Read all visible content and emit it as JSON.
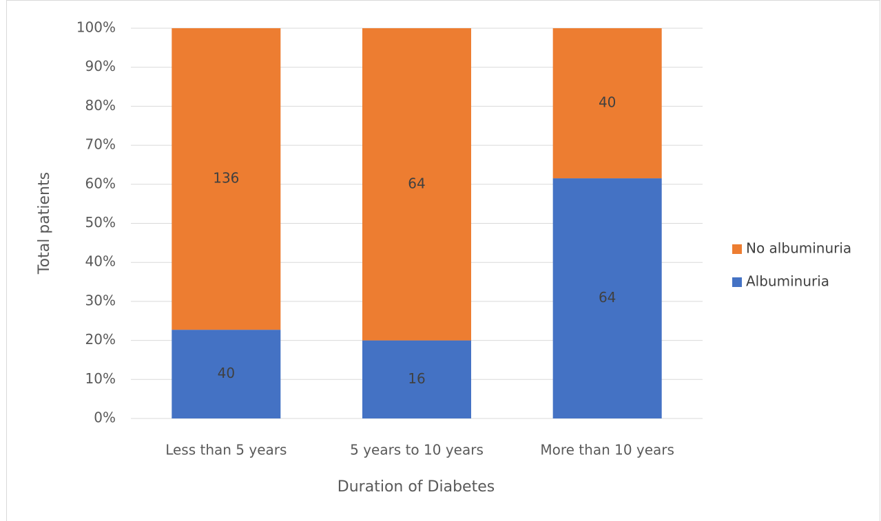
{
  "chart_data": {
    "type": "bar",
    "stacking": "percent",
    "x_label": "Duration of Diabetes",
    "y_label": "Total patients",
    "categories": [
      "Less than 5 years",
      "5 years to 10 years",
      "More than 10 years"
    ],
    "series": [
      {
        "name": "Albuminuria",
        "color": "#4472c4",
        "values": [
          40,
          16,
          64
        ]
      },
      {
        "name": "No albuminuria",
        "color": "#ed7d31",
        "values": [
          136,
          64,
          40
        ]
      }
    ],
    "ylim": [
      0,
      100
    ],
    "yticks": [
      {
        "value": 0,
        "label": "0%"
      },
      {
        "value": 10,
        "label": "10%"
      },
      {
        "value": 20,
        "label": "20%"
      },
      {
        "value": 30,
        "label": "30%"
      },
      {
        "value": 40,
        "label": "40%"
      },
      {
        "value": 50,
        "label": "50%"
      },
      {
        "value": 60,
        "label": "60%"
      },
      {
        "value": 70,
        "label": "70%"
      },
      {
        "value": 80,
        "label": "80%"
      },
      {
        "value": 90,
        "label": "90%"
      },
      {
        "value": 100,
        "label": "100%"
      }
    ],
    "grid": true,
    "legend": "right",
    "data_labels": true
  }
}
